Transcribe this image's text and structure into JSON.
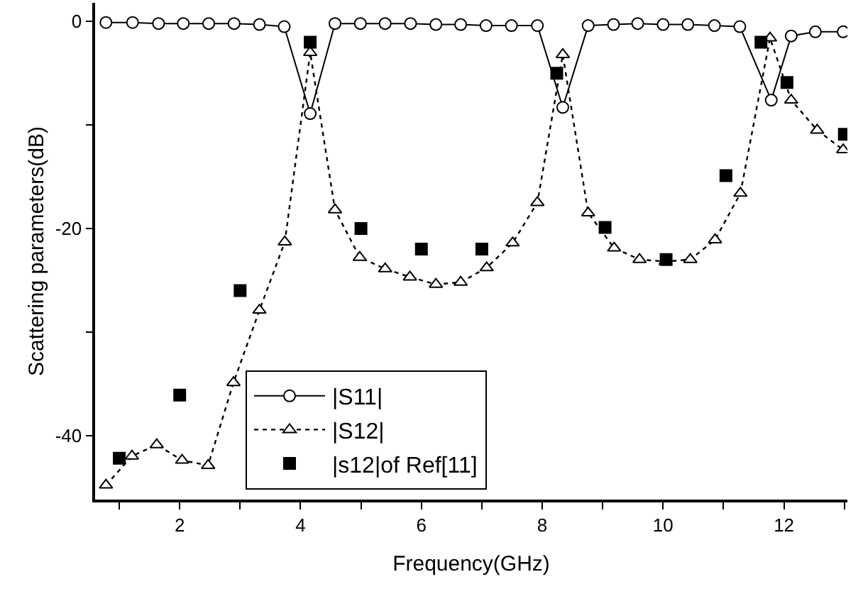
{
  "chart_data": {
    "type": "line",
    "xlabel": "Frequency(GHz)",
    "ylabel": "Scattering parameters(dB)",
    "xlim": [
      0.6,
      13.05
    ],
    "ylim": [
      -46.2,
      1.8
    ],
    "xticks": [
      {
        "value": 1,
        "label": null
      },
      2,
      {
        "value": 3,
        "label": null
      },
      4,
      {
        "value": 5,
        "label": null
      },
      6,
      {
        "value": 7,
        "label": null
      },
      8,
      {
        "value": 9,
        "label": null
      },
      10,
      {
        "value": 11,
        "label": null
      },
      12,
      {
        "value": 13,
        "label": null
      }
    ],
    "yticks": [
      {
        "value": -40,
        "label": "-40"
      },
      {
        "value": -30,
        "label": null
      },
      {
        "value": -20,
        "label": "-20"
      },
      {
        "value": -10,
        "label": null
      },
      0
    ],
    "grid": false,
    "legend": "bottom left",
    "series": [
      {
        "name": "|S11|",
        "color": "#000000",
        "marker": "circle",
        "line_style": "solid",
        "x": [
          0.78,
          1.22,
          1.65,
          2.06,
          2.48,
          2.9,
          3.32,
          3.73,
          4.16,
          4.57,
          4.99,
          5.4,
          5.82,
          6.24,
          6.65,
          7.07,
          7.49,
          7.92,
          8.34,
          8.76,
          9.18,
          9.58,
          10.0,
          10.41,
          10.85,
          11.27,
          11.79,
          12.12,
          12.52,
          12.98
        ],
        "values": [
          -0.1,
          -0.1,
          -0.2,
          -0.2,
          -0.2,
          -0.2,
          -0.3,
          -0.5,
          -8.9,
          -0.2,
          -0.2,
          -0.2,
          -0.2,
          -0.3,
          -0.3,
          -0.4,
          -0.4,
          -0.4,
          -8.3,
          -0.4,
          -0.3,
          -0.2,
          -0.3,
          -0.3,
          -0.4,
          -0.5,
          -7.6,
          -1.4,
          -1.0,
          -1.0
        ]
      },
      {
        "name": "|S12|",
        "color": "#000000",
        "marker": "triangle",
        "line_style": "dotted",
        "x": [
          0.78,
          1.21,
          1.62,
          2.04,
          2.47,
          2.89,
          3.32,
          3.74,
          4.16,
          4.57,
          4.98,
          5.4,
          5.81,
          6.24,
          6.65,
          7.08,
          7.51,
          7.92,
          8.34,
          8.76,
          9.19,
          9.61,
          10.04,
          10.45,
          10.86,
          11.28,
          11.77,
          12.12,
          12.55,
          12.98
        ],
        "values": [
          -44.8,
          -42.0,
          -40.9,
          -42.4,
          -42.9,
          -34.9,
          -27.9,
          -21.3,
          -3.0,
          -18.2,
          -22.8,
          -23.9,
          -24.7,
          -25.4,
          -25.2,
          -23.8,
          -21.4,
          -17.5,
          -3.2,
          -18.5,
          -21.9,
          -23.0,
          -23.2,
          -23.0,
          -21.1,
          -16.6,
          -1.6,
          -7.6,
          -10.5,
          -12.4
        ]
      },
      {
        "name": "|s12|of Ref[11]",
        "type": "scatter",
        "color": "#000000",
        "marker": "square",
        "x": [
          1.0,
          2.0,
          3.0,
          4.16,
          5.0,
          6.0,
          7.0,
          8.24,
          9.04,
          10.05,
          11.04,
          11.62,
          12.05,
          13.0
        ],
        "values": [
          -42.2,
          -36.1,
          -26.0,
          -2.0,
          -20.0,
          -22.0,
          -22.0,
          -5.0,
          -19.9,
          -23.0,
          -14.9,
          -2.0,
          -5.9,
          -10.9
        ]
      }
    ]
  }
}
